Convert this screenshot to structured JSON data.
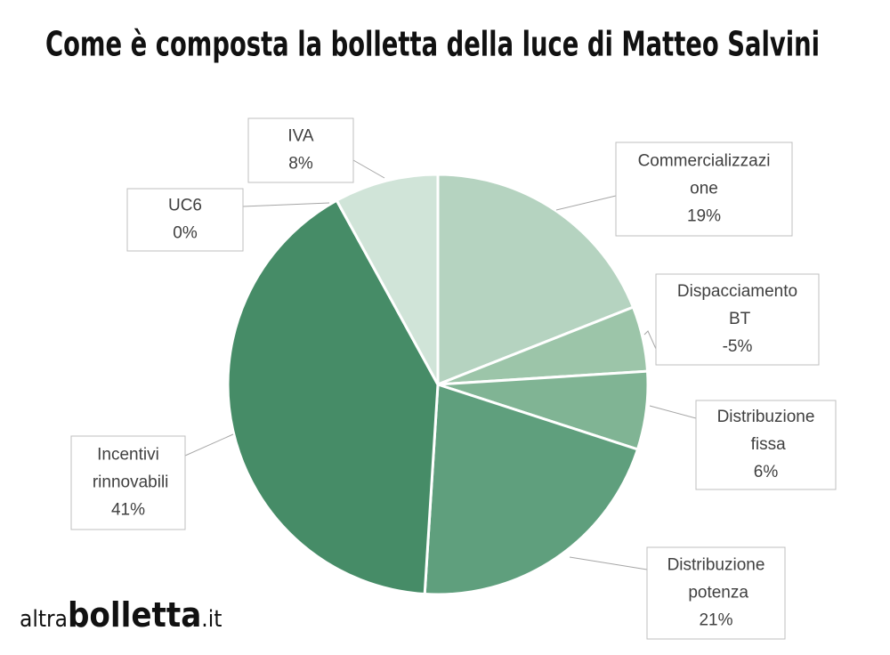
{
  "chart_data": {
    "type": "pie",
    "title": "Come è composta la bolletta della luce di Matteo Salvini",
    "categories": [
      "Commercializzazione",
      "Dispacciamento BT",
      "Distribuzione fissa",
      "Distribuzione potenza",
      "Incentivi rinnovabili",
      "UC6",
      "IVA"
    ],
    "values": [
      19,
      -5,
      6,
      21,
      41,
      0,
      8
    ],
    "value_labels": [
      "19%",
      "-5%",
      "6%",
      "21%",
      "41%",
      "0%",
      "8%"
    ],
    "colors": [
      "#b5d3c0",
      "#9cc5a9",
      "#80b494",
      "#5f9f7d",
      "#468c67",
      "#3f7f5c",
      "#d0e4d8"
    ]
  },
  "logo": {
    "prefix": "altra",
    "main": "bolletta",
    "suffix": ".it"
  }
}
